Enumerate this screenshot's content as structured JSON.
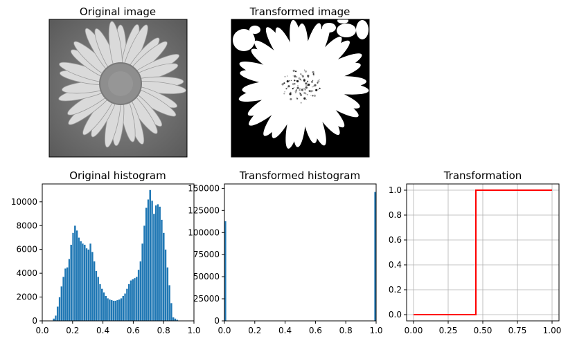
{
  "chart_data": [
    {
      "type": "image",
      "title": "Original image",
      "description_colors": {
        "petal": "#d9d9d9",
        "center": "#8c8c8c",
        "background": "#6e6e6e"
      }
    },
    {
      "type": "image",
      "title": "Transformed image",
      "description_colors": {
        "foreground": "#ffffff",
        "background": "#000000"
      }
    },
    {
      "type": "bar",
      "title": "Original histogram",
      "xlim": [
        0.0,
        1.0
      ],
      "ylim": [
        0,
        11500
      ],
      "xticks": [
        "0.0",
        "0.2",
        "0.4",
        "0.6",
        "0.8",
        "1.0"
      ],
      "yticks": [
        "0",
        "2000",
        "4000",
        "6000",
        "8000",
        "10000"
      ],
      "xtick_values": [
        0.0,
        0.2,
        0.4,
        0.6,
        0.8,
        1.0
      ],
      "ytick_values": [
        0,
        2000,
        4000,
        6000,
        8000,
        10000
      ],
      "bin_width": 0.0127,
      "x": [
        0.07,
        0.0827,
        0.0954,
        0.1081,
        0.1208,
        0.1335,
        0.1462,
        0.1589,
        0.1716,
        0.1843,
        0.197,
        0.2097,
        0.2224,
        0.2351,
        0.2478,
        0.2605,
        0.2732,
        0.2859,
        0.2986,
        0.3113,
        0.324,
        0.3367,
        0.3494,
        0.3621,
        0.3748,
        0.3875,
        0.4002,
        0.4129,
        0.4256,
        0.4383,
        0.451,
        0.4637,
        0.4764,
        0.4891,
        0.5018,
        0.5145,
        0.5272,
        0.5399,
        0.5526,
        0.5653,
        0.578,
        0.5907,
        0.6034,
        0.6161,
        0.6288,
        0.6415,
        0.6542,
        0.6669,
        0.6796,
        0.6923,
        0.705,
        0.7177,
        0.7304,
        0.7431,
        0.7558,
        0.7685,
        0.7812,
        0.7939,
        0.8066,
        0.8193,
        0.832,
        0.8447,
        0.8574,
        0.8701,
        0.8828,
        0.8955
      ],
      "values": [
        200,
        450,
        1200,
        2000,
        2900,
        3700,
        4400,
        4500,
        5200,
        6400,
        7400,
        8000,
        7600,
        7000,
        6700,
        6500,
        6400,
        6100,
        6000,
        6500,
        5800,
        5000,
        4200,
        3700,
        3100,
        2700,
        2400,
        2100,
        1900,
        1800,
        1750,
        1700,
        1700,
        1750,
        1800,
        1900,
        2100,
        2300,
        2700,
        3100,
        3400,
        3500,
        3600,
        3700,
        4300,
        5000,
        6500,
        8000,
        9500,
        10200,
        11000,
        10100,
        9000,
        9700,
        9800,
        9600,
        8500,
        7400,
        6000,
        4500,
        3000,
        1500,
        300,
        200,
        100,
        0
      ]
    },
    {
      "type": "bar",
      "title": "Transformed histogram",
      "xlim": [
        0.0,
        1.0
      ],
      "ylim": [
        0,
        155000
      ],
      "xticks": [
        "0.0",
        "0.2",
        "0.4",
        "0.6",
        "0.8",
        "1.0"
      ],
      "yticks": [
        "0",
        "25000",
        "50000",
        "75000",
        "100000",
        "125000",
        "150000"
      ],
      "xtick_values": [
        0.0,
        0.2,
        0.4,
        0.6,
        0.8,
        1.0
      ],
      "ytick_values": [
        0,
        25000,
        50000,
        75000,
        100000,
        125000,
        150000
      ],
      "bin_width": 0.0127,
      "x": [
        0.0,
        0.9873
      ],
      "values": [
        113000,
        146000
      ]
    },
    {
      "type": "line",
      "title": "Transformation",
      "xlim": [
        -0.05,
        1.05
      ],
      "ylim": [
        -0.05,
        1.05
      ],
      "grid": true,
      "xticks": [
        "0.00",
        "0.25",
        "0.50",
        "0.75",
        "1.00"
      ],
      "yticks": [
        "0.0",
        "0.2",
        "0.4",
        "0.6",
        "0.8",
        "1.0"
      ],
      "xtick_values": [
        0.0,
        0.25,
        0.5,
        0.75,
        1.0
      ],
      "ytick_values": [
        0.0,
        0.2,
        0.4,
        0.6,
        0.8,
        1.0
      ],
      "series": [
        {
          "color": "#ff0000",
          "x": [
            0.0,
            0.45,
            0.45,
            1.0
          ],
          "y": [
            0.0,
            0.0,
            1.0,
            1.0
          ]
        }
      ]
    }
  ],
  "colors": {
    "bar": "#1f77b4",
    "line": "#ff0000",
    "grid": "#b0b0b0"
  }
}
